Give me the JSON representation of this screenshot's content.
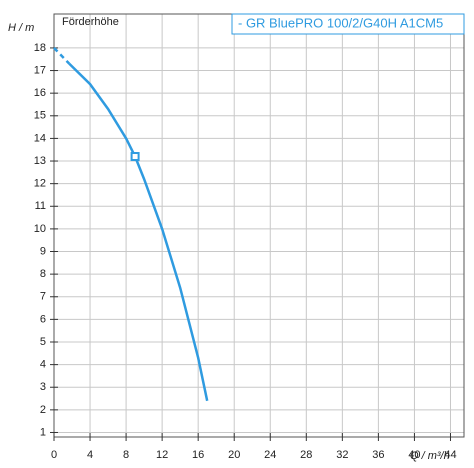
{
  "chart_data": {
    "type": "line",
    "title": "Förderhöhe",
    "y_label": "H / m",
    "x_label": "Q / m³/h",
    "x": [
      0,
      1.7,
      4,
      6,
      8,
      9,
      10,
      12,
      14,
      16,
      17
    ],
    "series": [
      {
        "name": "- GR BluePRO 100/2/G40H A1CM5",
        "color": "#2f9be0",
        "values": [
          18,
          17.3,
          16.4,
          15.3,
          14,
          13.2,
          12.2,
          10,
          7.4,
          4.3,
          2.4
        ]
      }
    ],
    "operating_point": {
      "x": 9,
      "y": 13.2
    },
    "xlim": [
      0,
      45.5
    ],
    "ylim": [
      0.8,
      19.5
    ],
    "xticks": [
      0,
      4,
      8,
      12,
      16,
      20,
      24,
      28,
      32,
      36,
      40,
      44
    ],
    "yticks": [
      1,
      2,
      3,
      4,
      5,
      6,
      7,
      8,
      9,
      10,
      11,
      12,
      13,
      14,
      15,
      16,
      17,
      18
    ],
    "grid": true
  }
}
